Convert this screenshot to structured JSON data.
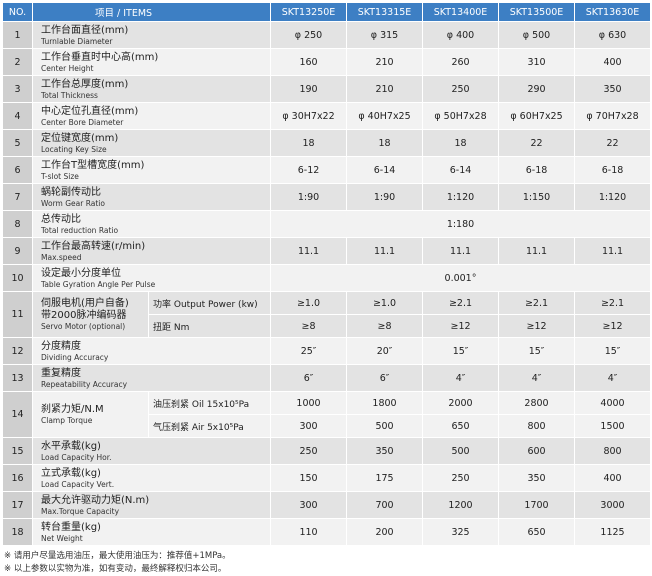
{
  "header": {
    "no": "NO.",
    "items": "项目 / ITEMS",
    "models": [
      "SKT13250E",
      "SKT13315E",
      "SKT13400E",
      "SKT13500E",
      "SKT13630E"
    ]
  },
  "rows": {
    "r1": {
      "no": "1",
      "zh": "工作台面直径(mm)",
      "en": "Turnlable Diameter",
      "v": [
        "φ 250",
        "φ 315",
        "φ 400",
        "φ 500",
        "φ 630"
      ]
    },
    "r2": {
      "no": "2",
      "zh": "工作台垂直时中心高(mm)",
      "en": "Center Height",
      "v": [
        "160",
        "210",
        "260",
        "310",
        "400"
      ]
    },
    "r3": {
      "no": "3",
      "zh": "工作台总厚度(mm)",
      "en": "Total Thickness",
      "v": [
        "190",
        "210",
        "250",
        "290",
        "350"
      ]
    },
    "r4": {
      "no": "4",
      "zh": "中心定位孔直径(mm)",
      "en": "Center Bore Diameter",
      "v": [
        "φ 30H7x22",
        "φ 40H7x25",
        "φ 50H7x28",
        "φ 60H7x25",
        "φ 70H7x28"
      ]
    },
    "r5": {
      "no": "5",
      "zh": "定位键宽度(mm)",
      "en": "Locating Key Size",
      "v": [
        "18",
        "18",
        "18",
        "22",
        "22"
      ]
    },
    "r6": {
      "no": "6",
      "zh": "工作台T型槽宽度(mm)",
      "en": "T-slot Size",
      "v": [
        "6-12",
        "6-14",
        "6-14",
        "6-18",
        "6-18"
      ]
    },
    "r7": {
      "no": "7",
      "zh": "蜗轮副传动比",
      "en": "Worm Gear Ratio",
      "v": [
        "1:90",
        "1:90",
        "1:120",
        "1:150",
        "1:120"
      ]
    },
    "r8": {
      "no": "8",
      "zh": "总传动比",
      "en": "Total reduction Ratio",
      "merged": "1:180"
    },
    "r9": {
      "no": "9",
      "zh": "工作台最高转速(r/min)",
      "en": "Max.speed",
      "v": [
        "11.1",
        "11.1",
        "11.1",
        "11.1",
        "11.1"
      ]
    },
    "r10": {
      "no": "10",
      "zh": "设定最小分度单位",
      "en": "Table Gyration Angle Per Pulse",
      "merged": "0.001°"
    },
    "r11": {
      "no": "11",
      "zh": "伺服电机(用户自备)",
      "zh2": "带2000脉冲编码器",
      "en": "Servo Motor (optional)",
      "sub1": "功率 Output Power (kw)",
      "v1": [
        "≥1.0",
        "≥1.0",
        "≥2.1",
        "≥2.1",
        "≥2.1"
      ],
      "sub2": "扭距 Nm",
      "v2": [
        "≥8",
        "≥8",
        "≥12",
        "≥12",
        "≥12"
      ]
    },
    "r12": {
      "no": "12",
      "zh": "分度精度",
      "en": "Dividing Accuracy",
      "v": [
        "25″",
        "20″",
        "15″",
        "15″",
        "15″"
      ]
    },
    "r13": {
      "no": "13",
      "zh": "重复精度",
      "en": "Repeatability Accuracy",
      "v": [
        "6″",
        "6″",
        "4″",
        "4″",
        "4″"
      ]
    },
    "r14": {
      "no": "14",
      "zh": "刹紧力矩/N.M",
      "en": "Clamp Torque",
      "sub1": "油压刹紧 Oil 15x10⁵Pa",
      "v1": [
        "1000",
        "1800",
        "2000",
        "2800",
        "4000"
      ],
      "sub2": "气压刹紧 Air 5x10⁵Pa",
      "v2": [
        "300",
        "500",
        "650",
        "800",
        "1500"
      ]
    },
    "r15": {
      "no": "15",
      "zh": "水平承载(kg)",
      "en": "Load Capacity Hor.",
      "v": [
        "250",
        "350",
        "500",
        "600",
        "800"
      ]
    },
    "r16": {
      "no": "16",
      "zh": "立式承载(kg)",
      "en": "Load Capacity Vert.",
      "v": [
        "150",
        "175",
        "250",
        "350",
        "400"
      ]
    },
    "r17": {
      "no": "17",
      "zh": "最大允许驱动力矩(N.m)",
      "en": "Max.Torque Capacity",
      "v": [
        "300",
        "700",
        "1200",
        "1700",
        "3000"
      ]
    },
    "r18": {
      "no": "18",
      "zh": "转台重量(kg)",
      "en": "Net Weight",
      "v": [
        "110",
        "200",
        "325",
        "650",
        "1125"
      ]
    }
  },
  "notes": [
    "※ 请用户尽量选用油压，最大使用油压为：推荐值+1MPa。",
    "※ 以上参数以实物为准，如有变动，最终解释权归本公司。"
  ]
}
